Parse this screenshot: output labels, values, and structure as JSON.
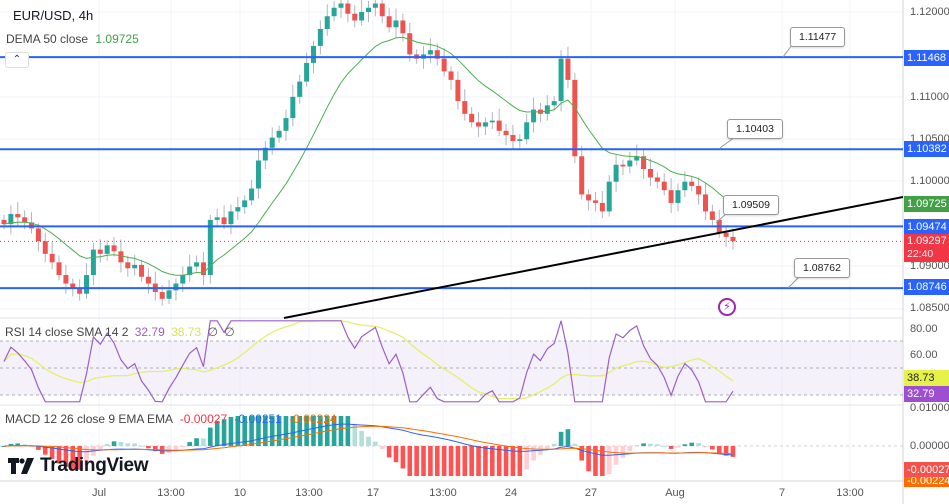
{
  "header": {
    "symbol_title": "EUR/USD, 4h",
    "dema_label": "DEMA 50 close",
    "dema_value": "1.09725"
  },
  "rsi_legend": {
    "label": "RSI 14 close SMA 14 2",
    "rsi_value": "32.79",
    "sma_value": "38.73",
    "extra1": "∅",
    "extra2": "∅"
  },
  "macd_legend": {
    "label": "MACD 12 26 close 9 EMA EMA",
    "hist_value": "-0.00027",
    "macd_value": "-0.00251",
    "signal_value": "-0.00224"
  },
  "price_axis": {
    "labels": [
      "1.12000",
      "1.11000",
      "1.10500",
      "1.10000",
      "1.09000",
      "1.08500"
    ],
    "tags": {
      "line1": "1.11468",
      "line2": "1.10382",
      "dema": "1.09725",
      "line3": "1.09474",
      "last_price": "1.09297",
      "countdown": "22:40",
      "line4": "1.08746"
    }
  },
  "rsi_axis": {
    "labels": [
      "80.00",
      "60.00"
    ],
    "sma_tag": "38.73",
    "rsi_tag": "32.79"
  },
  "macd_axis": {
    "labels": [
      "0.01000",
      "0.00000"
    ],
    "hist_tag": "-0.00027",
    "signal_tag": "-0.00224"
  },
  "time_axis": {
    "labels": [
      "Jul",
      "13:00",
      "10",
      "13:00",
      "17",
      "13:00",
      "24",
      "27",
      "Aug",
      "7",
      "13:00"
    ]
  },
  "callouts": {
    "c1": "1.11477",
    "c2": "1.10403",
    "c3": "1.09509",
    "c4": "1.08762"
  },
  "branding": {
    "logo_text": "TradingView"
  },
  "colors": {
    "up": "#26a69a",
    "down": "#ef5350",
    "hline": "#2962ff",
    "dema": "#4caf50",
    "rsi": "#9c5fc9",
    "rsi_sma": "#e5f06a",
    "macd": "#2962ff",
    "signal": "#ff6d00",
    "last_price_bg": "#f23645"
  },
  "chart_data": {
    "type": "candlestick",
    "title": "EUR/USD, 4h",
    "timeframe": "4h",
    "x_tick_labels": [
      "Jul",
      "13:00",
      "10",
      "13:00",
      "17",
      "13:00",
      "24",
      "27",
      "Aug",
      "7",
      "13:00"
    ],
    "price_range": [
      1.083,
      1.1215
    ],
    "horizontal_levels": [
      1.11468,
      1.10382,
      1.09474,
      1.08746
    ],
    "level_callouts": [
      1.11477,
      1.10403,
      1.09509,
      1.08762
    ],
    "trendline": {
      "from_price": 1.0842,
      "to_price": 1.099,
      "note": "ascending support line drawn from ~13:00 Jul 10 area to right edge"
    },
    "last_price": 1.09297,
    "dema50": 1.09725,
    "close_path": [
      1.095,
      1.0962,
      1.0958,
      1.0952,
      1.0945,
      1.093,
      1.0915,
      1.0905,
      1.089,
      1.088,
      1.0875,
      1.0868,
      1.089,
      1.092,
      1.0915,
      1.0925,
      1.0918,
      1.0905,
      1.0898,
      1.0902,
      1.0888,
      1.088,
      1.087,
      1.0862,
      1.0872,
      1.088,
      1.089,
      1.09,
      1.0905,
      1.089,
      1.0955,
      1.0958,
      1.095,
      1.0965,
      1.097,
      1.0978,
      1.0992,
      1.1025,
      1.104,
      1.1052,
      1.106,
      1.1075,
      1.11,
      1.1118,
      1.114,
      1.116,
      1.118,
      1.1195,
      1.1205,
      1.121,
      1.1198,
      1.119,
      1.12,
      1.1205,
      1.121,
      1.1195,
      1.1182,
      1.119,
      1.1175,
      1.115,
      1.1145,
      1.115,
      1.1155,
      1.1145,
      1.113,
      1.112,
      1.1095,
      1.108,
      1.107,
      1.1065,
      1.107,
      1.1072,
      1.106,
      1.1055,
      1.1048,
      1.105,
      1.107,
      1.1085,
      1.108,
      1.109,
      1.1095,
      1.1145,
      1.112,
      1.103,
      1.0985,
      1.0978,
      1.0975,
      1.0965,
      1.1,
      1.102,
      1.1018,
      1.1025,
      1.103,
      1.1015,
      1.1005,
      1.1,
      1.099,
      1.0975,
      1.099,
      1.1,
      1.0995,
      1.0985,
      1.0965,
      1.0955,
      1.094,
      1.0935,
      1.093
    ],
    "rsi": {
      "values_note": "oscillates 45-80 early, peaks ~82 near 17 Jul, drops to ~30 near 24 Jul, spike to ~70 at 27 Jul, ends 32.79",
      "last": 32.79,
      "sma_last": 38.73,
      "bands": [
        70,
        50,
        30
      ]
    },
    "macd": {
      "macd_last": -0.00251,
      "signal_last": -0.00224,
      "hist_last": -0.00027
    }
  }
}
